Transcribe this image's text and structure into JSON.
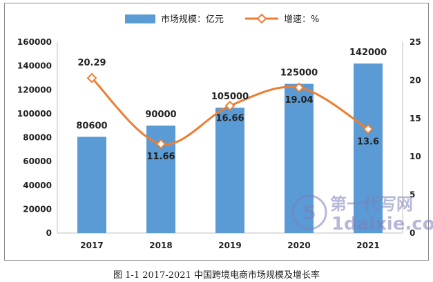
{
  "chart_data": {
    "type": "bar+line",
    "categories": [
      "2017",
      "2018",
      "2019",
      "2020",
      "2021"
    ],
    "series": [
      {
        "name": "市场规模：亿元",
        "type": "bar",
        "axis": "left",
        "values": [
          80600,
          90000,
          105000,
          125000,
          142000
        ],
        "color": "#5b9bd5"
      },
      {
        "name": "增速：%",
        "type": "line",
        "axis": "right",
        "values": [
          20.29,
          11.66,
          16.66,
          19.04,
          13.6
        ],
        "color": "#ed7d31"
      }
    ],
    "bar_labels": [
      "80600",
      "90000",
      "105000",
      "125000",
      "142000"
    ],
    "line_labels": [
      "20.29",
      "11.66",
      "16.66",
      "19.04",
      "13.6"
    ],
    "y_left": {
      "min": 0,
      "max": 160000,
      "ticks": [
        "0",
        "20000",
        "40000",
        "60000",
        "80000",
        "100000",
        "120000",
        "140000",
        "160000"
      ]
    },
    "y_right": {
      "min": 0,
      "max": 25,
      "ticks": [
        "0",
        "5",
        "10",
        "15",
        "20",
        "25"
      ]
    },
    "legend_position": "top-center",
    "grid": false
  },
  "caption": "图 1-1 2017-2021 中国跨境电商市场规模及增长率",
  "watermark": {
    "line1": "第一代写网",
    "line2": "1daixie.com"
  }
}
